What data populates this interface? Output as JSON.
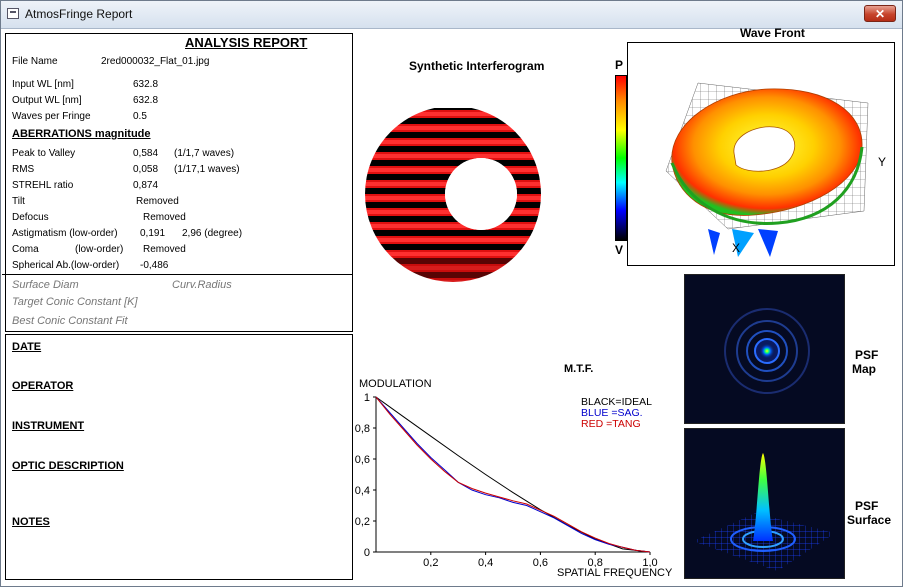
{
  "window": {
    "title": "AtmosFringe  Report",
    "close_label": "✕"
  },
  "report": {
    "heading": "ANALYSIS  REPORT",
    "file": {
      "label": "File Name",
      "value": "2red000032_Flat_01.jpg"
    },
    "input_wl": {
      "label": "Input  WL [nm]",
      "value": "632.8"
    },
    "output_wl": {
      "label": "Output WL [nm]",
      "value": "632.8"
    },
    "waves_per_fringe": {
      "label": "Waves per Fringe",
      "value": "0.5"
    },
    "aberrations_heading": "ABERRATIONS magnitude",
    "ptv": {
      "label": "Peak to Valley",
      "value": "0,584",
      "extra": "(1/1,7 waves)"
    },
    "rms": {
      "label": "RMS",
      "value": "0,058",
      "extra": "(1/17,1 waves)"
    },
    "strehl": {
      "label": "STREHL ratio",
      "value": "0,874"
    },
    "tilt": {
      "label": "Tilt",
      "value": "Removed"
    },
    "defocus": {
      "label": "Defocus",
      "value": "Removed"
    },
    "astig": {
      "label": "Astigmatism  (low-order)",
      "value": "0,191",
      "extra": "2,96  (degree)"
    },
    "coma": {
      "label": "Coma",
      "order": "(low-order)",
      "value": "Removed"
    },
    "spherical": {
      "label": "Spherical Ab.(low-order)",
      "value": "-0,486"
    },
    "surface_diam": "Surface Diam",
    "curv_radius": "Curv.Radius",
    "target_conic": "Target Conic Constant [K]",
    "best_conic": "Best Conic Constant Fit"
  },
  "notes_panel": {
    "date": "DATE",
    "operator": "OPERATOR",
    "instrument": "INSTRUMENT",
    "optic_description": "OPTIC DESCRIPTION",
    "notes": "NOTES"
  },
  "interferogram": {
    "title": "Synthetic Interferogram",
    "fringe_color": "#e01010"
  },
  "colorbar": {
    "top": "P",
    "bottom": "V"
  },
  "wavefront": {
    "title": "Wave Front",
    "y_axis": "Y",
    "x_axis": "X"
  },
  "psf": {
    "map_label_1": "PSF",
    "map_label_2": "Map",
    "surface_label_1": "PSF",
    "surface_label_2": "Surface"
  },
  "chart_data": {
    "type": "line",
    "title": "M.T.F.",
    "ylabel": "MODULATION",
    "xlabel": "SPATIAL FREQUENCY",
    "xlim": [
      0,
      1
    ],
    "ylim": [
      0,
      1
    ],
    "x_ticks": [
      "0,2",
      "0,4",
      "0,6",
      "0,8",
      "1,0"
    ],
    "y_ticks": [
      "0",
      "0,2",
      "0,4",
      "0,6",
      "0,8",
      "1"
    ],
    "legend": [
      "BLACK=IDEAL",
      "BLUE  =SAG.",
      "RED    =TANG"
    ],
    "series": [
      {
        "name": "IDEAL",
        "color": "#000000",
        "x": [
          0,
          0.1,
          0.2,
          0.3,
          0.4,
          0.5,
          0.6,
          0.7,
          0.8,
          0.9,
          1.0
        ],
        "y": [
          1.0,
          0.873,
          0.747,
          0.622,
          0.5,
          0.383,
          0.273,
          0.172,
          0.083,
          0.02,
          0.0
        ]
      },
      {
        "name": "SAG.",
        "color": "#0000cc",
        "x": [
          0,
          0.05,
          0.1,
          0.15,
          0.2,
          0.25,
          0.3,
          0.35,
          0.4,
          0.45,
          0.5,
          0.55,
          0.6,
          0.65,
          0.7,
          0.75,
          0.8,
          0.85,
          0.9,
          0.95,
          1.0
        ],
        "y": [
          1.0,
          0.9,
          0.8,
          0.7,
          0.61,
          0.53,
          0.45,
          0.4,
          0.37,
          0.35,
          0.32,
          0.3,
          0.26,
          0.22,
          0.17,
          0.12,
          0.08,
          0.05,
          0.03,
          0.01,
          0.0
        ]
      },
      {
        "name": "TANG",
        "color": "#cc0000",
        "x": [
          0,
          0.05,
          0.1,
          0.15,
          0.2,
          0.25,
          0.3,
          0.35,
          0.4,
          0.45,
          0.5,
          0.55,
          0.6,
          0.65,
          0.7,
          0.75,
          0.8,
          0.85,
          0.9,
          0.95,
          1.0
        ],
        "y": [
          1.0,
          0.89,
          0.79,
          0.69,
          0.6,
          0.52,
          0.45,
          0.41,
          0.38,
          0.355,
          0.33,
          0.31,
          0.27,
          0.23,
          0.18,
          0.13,
          0.09,
          0.055,
          0.03,
          0.01,
          0.0
        ]
      }
    ]
  }
}
